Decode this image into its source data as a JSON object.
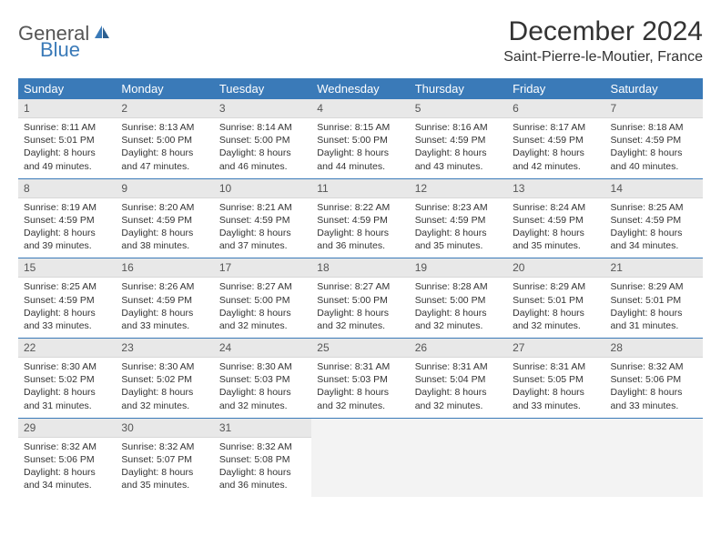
{
  "logo": {
    "text1": "General",
    "text2": "Blue"
  },
  "title": "December 2024",
  "location": "Saint-Pierre-le-Moutier, France",
  "weekdays": [
    "Sunday",
    "Monday",
    "Tuesday",
    "Wednesday",
    "Thursday",
    "Friday",
    "Saturday"
  ],
  "colors": {
    "header_bg": "#3a7ab8",
    "header_text": "#ffffff",
    "daynum_bg": "#e8e8e8",
    "empty_bg": "#f3f3f3",
    "rule": "#3a7ab8"
  },
  "weeks": [
    [
      {
        "n": "1",
        "sr": "Sunrise: 8:11 AM",
        "ss": "Sunset: 5:01 PM",
        "d1": "Daylight: 8 hours",
        "d2": "and 49 minutes."
      },
      {
        "n": "2",
        "sr": "Sunrise: 8:13 AM",
        "ss": "Sunset: 5:00 PM",
        "d1": "Daylight: 8 hours",
        "d2": "and 47 minutes."
      },
      {
        "n": "3",
        "sr": "Sunrise: 8:14 AM",
        "ss": "Sunset: 5:00 PM",
        "d1": "Daylight: 8 hours",
        "d2": "and 46 minutes."
      },
      {
        "n": "4",
        "sr": "Sunrise: 8:15 AM",
        "ss": "Sunset: 5:00 PM",
        "d1": "Daylight: 8 hours",
        "d2": "and 44 minutes."
      },
      {
        "n": "5",
        "sr": "Sunrise: 8:16 AM",
        "ss": "Sunset: 4:59 PM",
        "d1": "Daylight: 8 hours",
        "d2": "and 43 minutes."
      },
      {
        "n": "6",
        "sr": "Sunrise: 8:17 AM",
        "ss": "Sunset: 4:59 PM",
        "d1": "Daylight: 8 hours",
        "d2": "and 42 minutes."
      },
      {
        "n": "7",
        "sr": "Sunrise: 8:18 AM",
        "ss": "Sunset: 4:59 PM",
        "d1": "Daylight: 8 hours",
        "d2": "and 40 minutes."
      }
    ],
    [
      {
        "n": "8",
        "sr": "Sunrise: 8:19 AM",
        "ss": "Sunset: 4:59 PM",
        "d1": "Daylight: 8 hours",
        "d2": "and 39 minutes."
      },
      {
        "n": "9",
        "sr": "Sunrise: 8:20 AM",
        "ss": "Sunset: 4:59 PM",
        "d1": "Daylight: 8 hours",
        "d2": "and 38 minutes."
      },
      {
        "n": "10",
        "sr": "Sunrise: 8:21 AM",
        "ss": "Sunset: 4:59 PM",
        "d1": "Daylight: 8 hours",
        "d2": "and 37 minutes."
      },
      {
        "n": "11",
        "sr": "Sunrise: 8:22 AM",
        "ss": "Sunset: 4:59 PM",
        "d1": "Daylight: 8 hours",
        "d2": "and 36 minutes."
      },
      {
        "n": "12",
        "sr": "Sunrise: 8:23 AM",
        "ss": "Sunset: 4:59 PM",
        "d1": "Daylight: 8 hours",
        "d2": "and 35 minutes."
      },
      {
        "n": "13",
        "sr": "Sunrise: 8:24 AM",
        "ss": "Sunset: 4:59 PM",
        "d1": "Daylight: 8 hours",
        "d2": "and 35 minutes."
      },
      {
        "n": "14",
        "sr": "Sunrise: 8:25 AM",
        "ss": "Sunset: 4:59 PM",
        "d1": "Daylight: 8 hours",
        "d2": "and 34 minutes."
      }
    ],
    [
      {
        "n": "15",
        "sr": "Sunrise: 8:25 AM",
        "ss": "Sunset: 4:59 PM",
        "d1": "Daylight: 8 hours",
        "d2": "and 33 minutes."
      },
      {
        "n": "16",
        "sr": "Sunrise: 8:26 AM",
        "ss": "Sunset: 4:59 PM",
        "d1": "Daylight: 8 hours",
        "d2": "and 33 minutes."
      },
      {
        "n": "17",
        "sr": "Sunrise: 8:27 AM",
        "ss": "Sunset: 5:00 PM",
        "d1": "Daylight: 8 hours",
        "d2": "and 32 minutes."
      },
      {
        "n": "18",
        "sr": "Sunrise: 8:27 AM",
        "ss": "Sunset: 5:00 PM",
        "d1": "Daylight: 8 hours",
        "d2": "and 32 minutes."
      },
      {
        "n": "19",
        "sr": "Sunrise: 8:28 AM",
        "ss": "Sunset: 5:00 PM",
        "d1": "Daylight: 8 hours",
        "d2": "and 32 minutes."
      },
      {
        "n": "20",
        "sr": "Sunrise: 8:29 AM",
        "ss": "Sunset: 5:01 PM",
        "d1": "Daylight: 8 hours",
        "d2": "and 32 minutes."
      },
      {
        "n": "21",
        "sr": "Sunrise: 8:29 AM",
        "ss": "Sunset: 5:01 PM",
        "d1": "Daylight: 8 hours",
        "d2": "and 31 minutes."
      }
    ],
    [
      {
        "n": "22",
        "sr": "Sunrise: 8:30 AM",
        "ss": "Sunset: 5:02 PM",
        "d1": "Daylight: 8 hours",
        "d2": "and 31 minutes."
      },
      {
        "n": "23",
        "sr": "Sunrise: 8:30 AM",
        "ss": "Sunset: 5:02 PM",
        "d1": "Daylight: 8 hours",
        "d2": "and 32 minutes."
      },
      {
        "n": "24",
        "sr": "Sunrise: 8:30 AM",
        "ss": "Sunset: 5:03 PM",
        "d1": "Daylight: 8 hours",
        "d2": "and 32 minutes."
      },
      {
        "n": "25",
        "sr": "Sunrise: 8:31 AM",
        "ss": "Sunset: 5:03 PM",
        "d1": "Daylight: 8 hours",
        "d2": "and 32 minutes."
      },
      {
        "n": "26",
        "sr": "Sunrise: 8:31 AM",
        "ss": "Sunset: 5:04 PM",
        "d1": "Daylight: 8 hours",
        "d2": "and 32 minutes."
      },
      {
        "n": "27",
        "sr": "Sunrise: 8:31 AM",
        "ss": "Sunset: 5:05 PM",
        "d1": "Daylight: 8 hours",
        "d2": "and 33 minutes."
      },
      {
        "n": "28",
        "sr": "Sunrise: 8:32 AM",
        "ss": "Sunset: 5:06 PM",
        "d1": "Daylight: 8 hours",
        "d2": "and 33 minutes."
      }
    ],
    [
      {
        "n": "29",
        "sr": "Sunrise: 8:32 AM",
        "ss": "Sunset: 5:06 PM",
        "d1": "Daylight: 8 hours",
        "d2": "and 34 minutes."
      },
      {
        "n": "30",
        "sr": "Sunrise: 8:32 AM",
        "ss": "Sunset: 5:07 PM",
        "d1": "Daylight: 8 hours",
        "d2": "and 35 minutes."
      },
      {
        "n": "31",
        "sr": "Sunrise: 8:32 AM",
        "ss": "Sunset: 5:08 PM",
        "d1": "Daylight: 8 hours",
        "d2": "and 36 minutes."
      },
      null,
      null,
      null,
      null
    ]
  ]
}
